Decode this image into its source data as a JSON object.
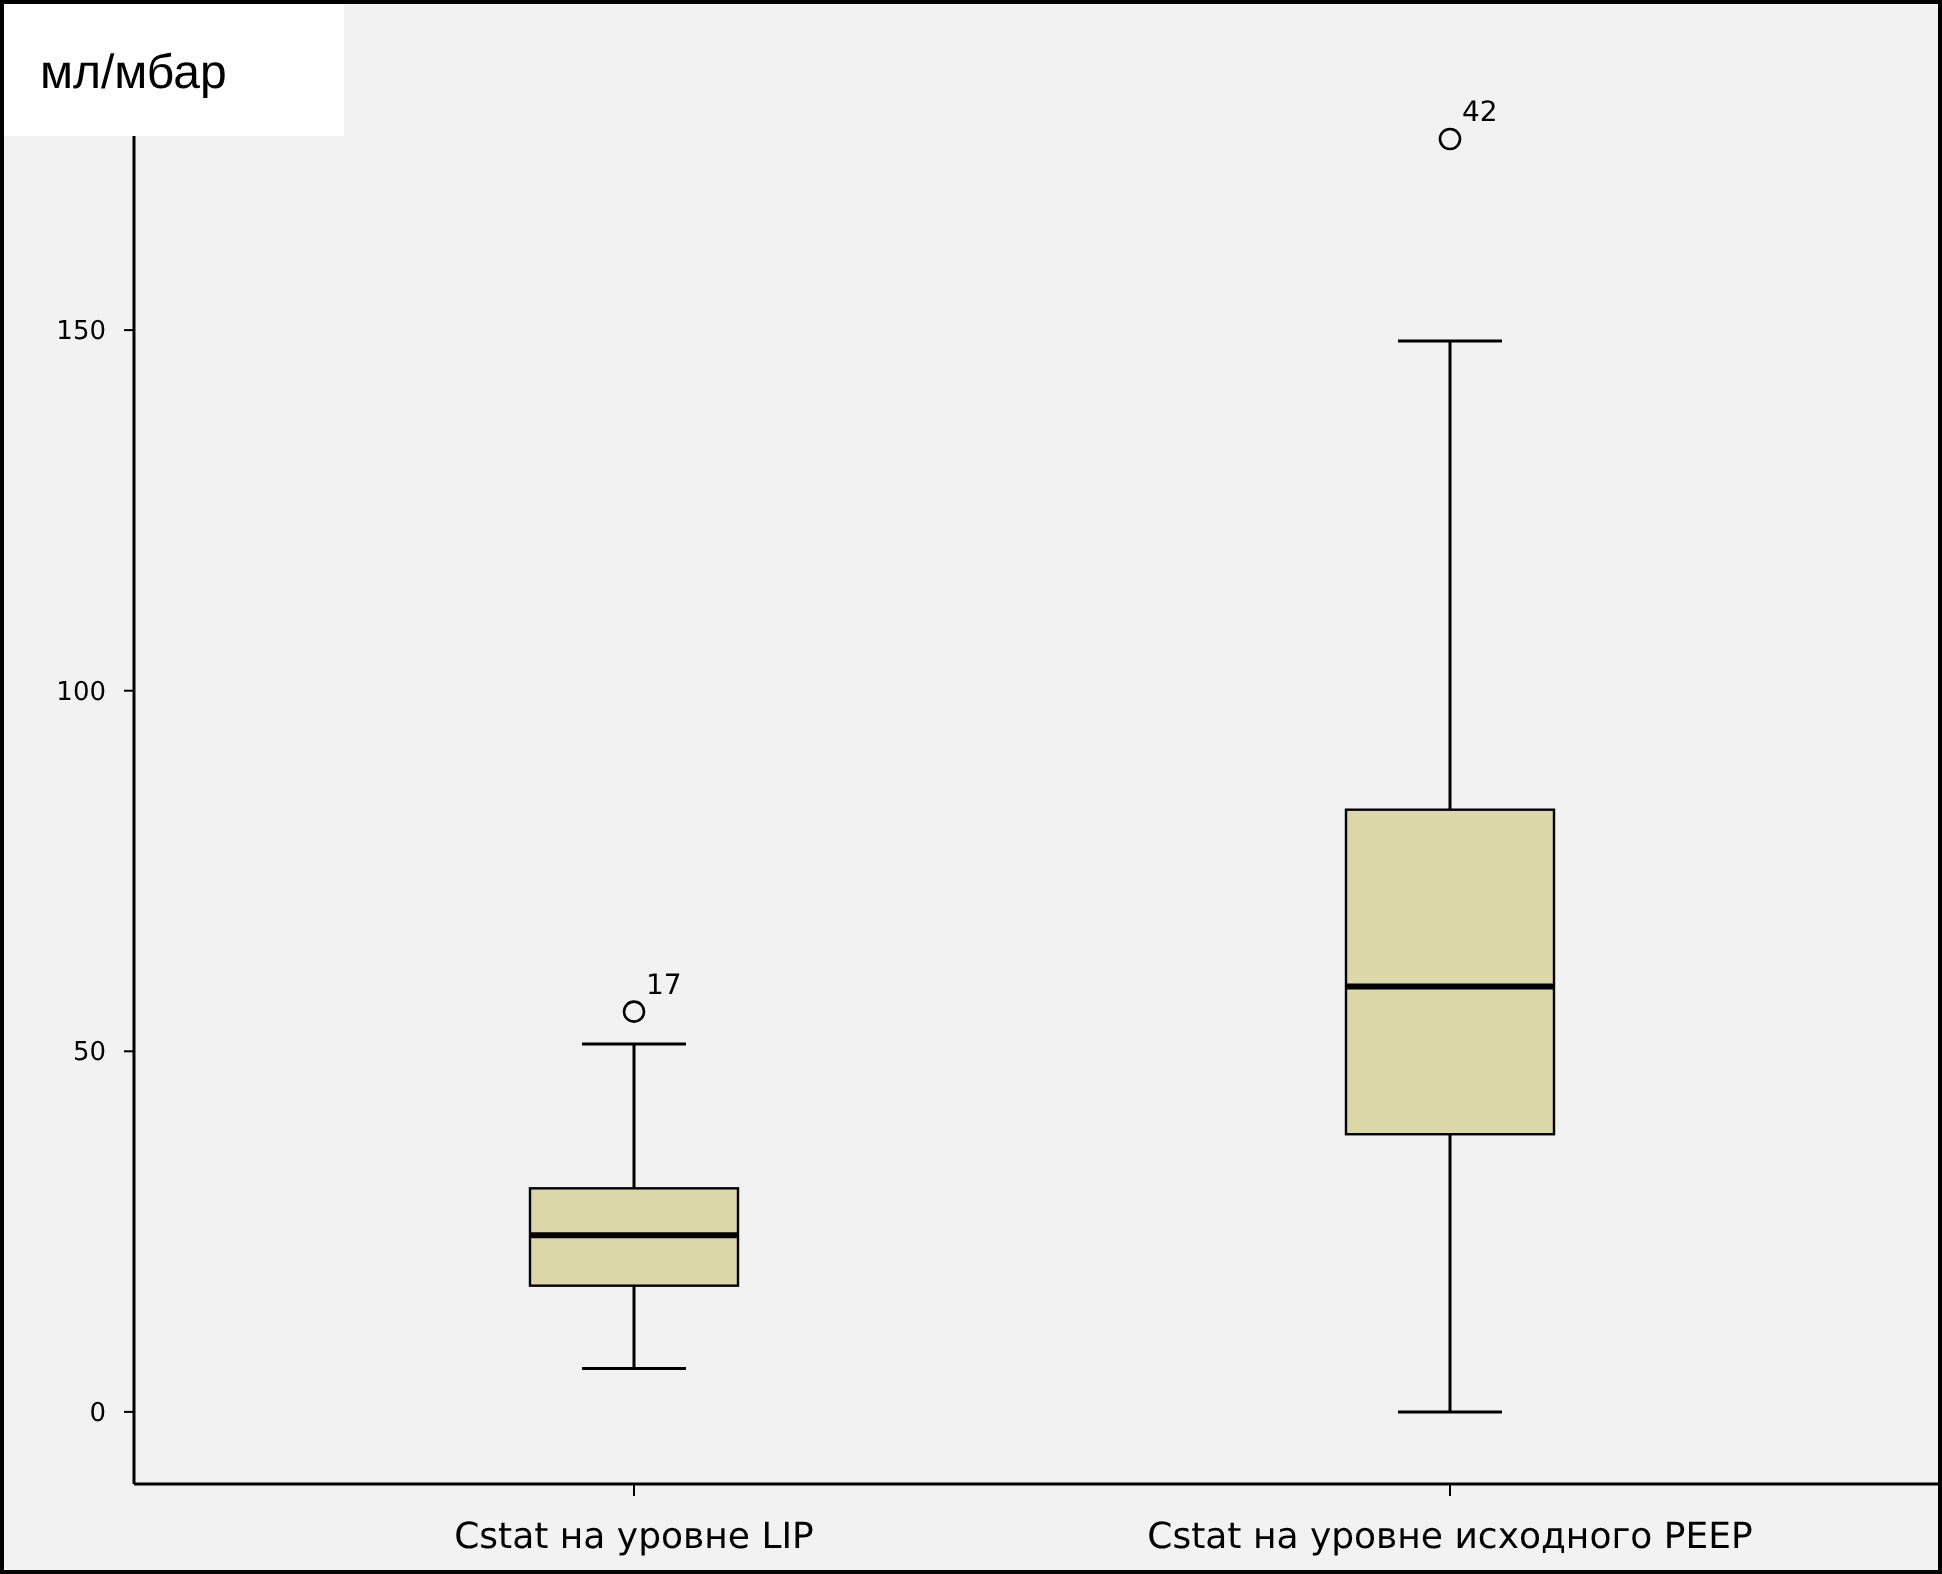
{
  "chart_data": {
    "type": "box",
    "ylabel": "мл/мбар",
    "categories": [
      "Cstat на уровне LIP",
      "Cstat на уровне исходного PEEP"
    ],
    "boxes": [
      {
        "low": 6,
        "q1": 17.5,
        "median": 24.5,
        "q3": 31,
        "high": 51,
        "outliers": [
          55.5
        ]
      },
      {
        "low": 0,
        "q1": 38.5,
        "median": 59,
        "q3": 83.5,
        "high": 148.5,
        "outliers": [
          176.5
        ]
      }
    ],
    "color": "#dcd7a8",
    "ylim": [
      -10,
      193
    ],
    "yticks": [
      0,
      50,
      100,
      150
    ],
    "grid": false,
    "annotations": [
      "17",
      "42"
    ]
  }
}
